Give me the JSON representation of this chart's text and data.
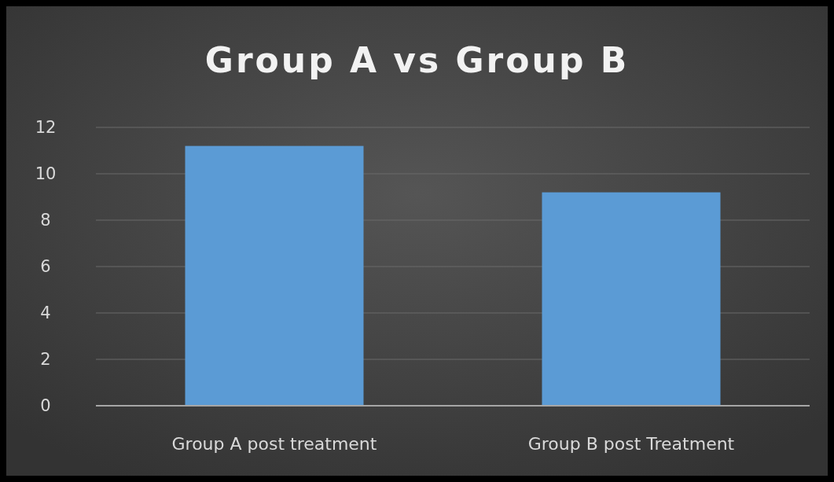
{
  "chart_data": {
    "type": "bar",
    "title": "Group A vs Group B",
    "categories": [
      "Group A post treatment",
      "Group B post Treatment"
    ],
    "values": [
      11.2,
      9.2
    ],
    "color": "#5b9bd5",
    "ylim": [
      0,
      12
    ],
    "yticks": [
      0,
      2,
      4,
      6,
      8,
      10,
      12
    ],
    "grid": "y"
  }
}
